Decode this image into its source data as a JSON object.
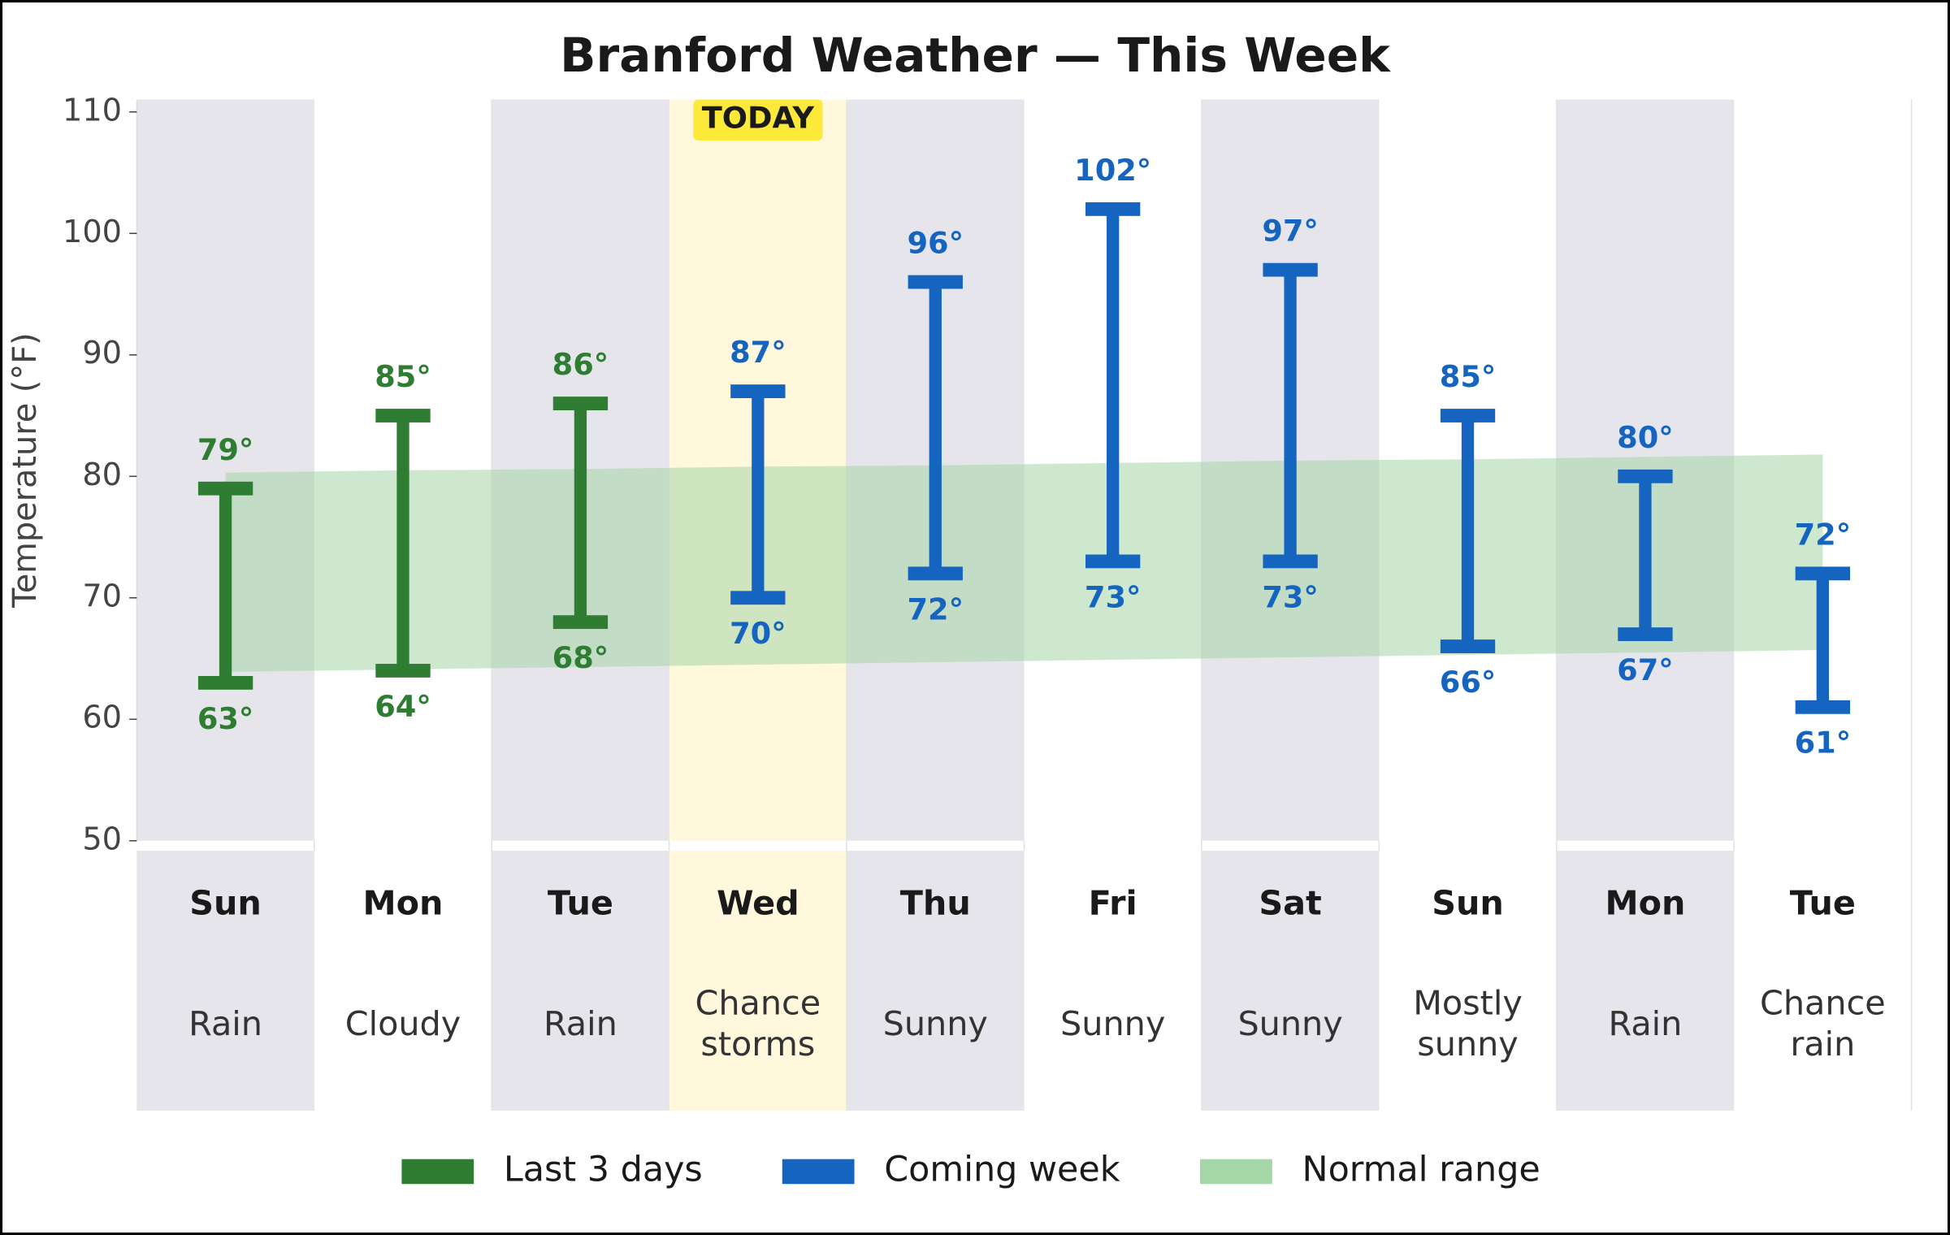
{
  "chart_data": {
    "type": "range_bar",
    "title": "Branford Weather — This Week",
    "y_label": "Temperature (°F)",
    "categories": [
      "Sun",
      "Mon",
      "Tue",
      "Wed",
      "Thu",
      "Fri",
      "Sat",
      "Sun",
      "Mon",
      "Tue"
    ],
    "conditions": [
      [
        "Rain"
      ],
      [
        "Cloudy"
      ],
      [
        "Rain"
      ],
      [
        "Chance",
        "storms"
      ],
      [
        "Sunny"
      ],
      [
        "Sunny"
      ],
      [
        "Sunny"
      ],
      [
        "Mostly",
        "sunny"
      ],
      [
        "Rain"
      ],
      [
        "Chance",
        "rain"
      ]
    ],
    "today_index": 3,
    "today_label": "TODAY",
    "ylim": [
      50,
      110
    ],
    "yticks": [
      50,
      60,
      70,
      80,
      90,
      100,
      110
    ],
    "series": [
      {
        "name": "Last 3 days",
        "color": "#2e7d32",
        "high": [
          79,
          85,
          86,
          null,
          null,
          null,
          null,
          null,
          null,
          null
        ],
        "low": [
          63,
          64,
          68,
          null,
          null,
          null,
          null,
          null,
          null,
          null
        ],
        "high_labels": [
          "79°",
          "85°",
          "86°",
          null,
          null,
          null,
          null,
          null,
          null,
          null
        ],
        "low_labels": [
          "63°",
          "64°",
          "68°",
          null,
          null,
          null,
          null,
          null,
          null,
          null
        ]
      },
      {
        "name": "Coming week",
        "color": "#1565c0",
        "high": [
          null,
          null,
          null,
          87,
          96,
          102,
          97,
          85,
          80,
          72
        ],
        "low": [
          null,
          null,
          null,
          70,
          72,
          73,
          73,
          66,
          67,
          61
        ],
        "high_labels": [
          null,
          null,
          null,
          "87°",
          "96°",
          "102°",
          "97°",
          "85°",
          "80°",
          "72°"
        ],
        "low_labels": [
          null,
          null,
          null,
          "70°",
          "72°",
          "73°",
          "73°",
          "66°",
          "67°",
          "61°"
        ]
      }
    ],
    "normal": {
      "name": "Normal range",
      "color": "#a5d6a7",
      "high": [
        80.3,
        80.5,
        80.6,
        80.8,
        80.9,
        81.1,
        81.3,
        81.4,
        81.6,
        81.8
      ],
      "low": [
        63.9,
        64.1,
        64.3,
        64.5,
        64.7,
        64.9,
        65.1,
        65.3,
        65.5,
        65.7
      ]
    }
  }
}
